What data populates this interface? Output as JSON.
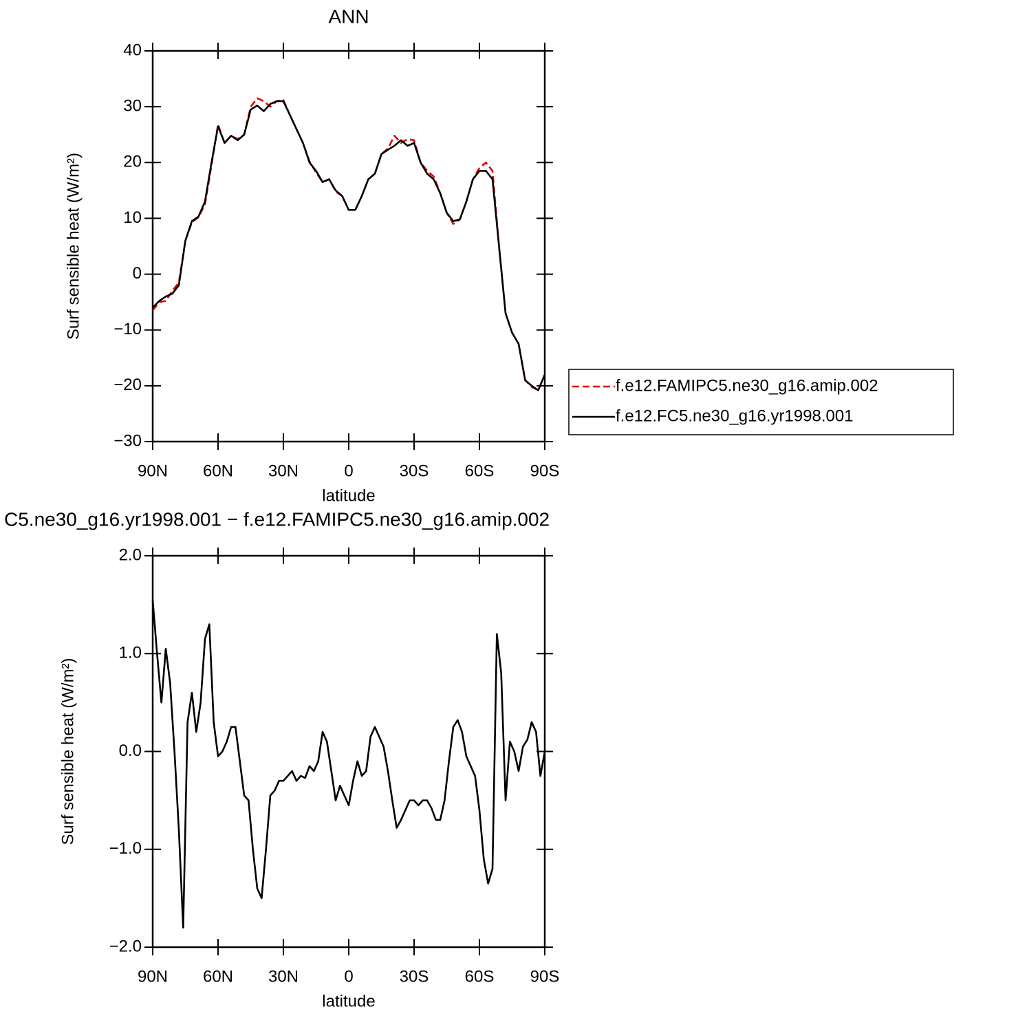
{
  "chart_data": [
    {
      "type": "line",
      "title": "ANN",
      "x_label": "latitude",
      "y_label": "Surf sensible heat (W/m²)",
      "x": [
        90,
        87,
        84,
        81,
        78,
        75,
        72,
        69,
        66,
        63,
        60,
        57,
        54,
        51,
        48,
        45,
        42,
        39,
        36,
        33,
        30,
        27,
        24,
        21,
        18,
        15,
        12,
        9,
        6,
        3,
        0,
        -3,
        -6,
        -9,
        -12,
        -15,
        -18,
        -21,
        -24,
        -27,
        -30,
        -33,
        -36,
        -39,
        -42,
        -45,
        -48,
        -51,
        -54,
        -57,
        -60,
        -63,
        -66,
        -69,
        -72,
        -75,
        -78,
        -81,
        -84,
        -87,
        -90
      ],
      "series": [
        {
          "name": "f.e12.FAMIPC5.ne30_g16.amip.002",
          "color": "#e00000",
          "dash": true,
          "values": [
            -6.5,
            -5,
            -4.8,
            -3,
            -1.5,
            6,
            9.3,
            10.2,
            12.5,
            19.5,
            26.8,
            23.5,
            24.8,
            24.2,
            25,
            30,
            31.5,
            31,
            30,
            31,
            31.2,
            28.5,
            26,
            23.5,
            20.2,
            18.2,
            16.5,
            17,
            14.8,
            14,
            11.5,
            11.5,
            14,
            17,
            18,
            21.5,
            22.5,
            24.8,
            23.5,
            24.2,
            24,
            20,
            18.5,
            17.5,
            14.5,
            11,
            9,
            9.8,
            13,
            17,
            19,
            20,
            18.5,
            5,
            -7,
            -10.5,
            -12.5,
            -19,
            -20.2,
            -20.8,
            -18
          ]
        },
        {
          "name": "f.e12.FC5.ne30_g16.yr1998.001",
          "color": "#000000",
          "dash": false,
          "values": [
            -6,
            -4.8,
            -4,
            -3.5,
            -2,
            6,
            9.5,
            10.3,
            13,
            20,
            26.5,
            23.5,
            24.8,
            24,
            25,
            29.5,
            30.2,
            29.2,
            30.5,
            31,
            31,
            28.5,
            26,
            23.5,
            20,
            18.5,
            16.5,
            17,
            15,
            14,
            11.5,
            11.5,
            14,
            17,
            18,
            21.5,
            22.3,
            23,
            24,
            23,
            23.5,
            20,
            18,
            17,
            14.5,
            11,
            9.5,
            9.8,
            13,
            17,
            18.5,
            18.5,
            17,
            5,
            -7,
            -10.5,
            -12.5,
            -19,
            -20,
            -20.8,
            -18
          ]
        }
      ],
      "xlim": [
        90,
        -90
      ],
      "xticks": [
        {
          "value": 90,
          "label": "90N"
        },
        {
          "value": 60,
          "label": "60N"
        },
        {
          "value": 30,
          "label": "30N"
        },
        0,
        {
          "value": -30,
          "label": "30S"
        },
        {
          "value": -60,
          "label": "60S"
        },
        {
          "value": -90,
          "label": "90S"
        }
      ],
      "ylim": [
        -30,
        40
      ],
      "yticks": [
        {
          "value": -30,
          "label": "−30"
        },
        {
          "value": -20,
          "label": "−20"
        },
        {
          "value": -10,
          "label": "−10"
        },
        0,
        10,
        20,
        30,
        40
      ],
      "legend": "right"
    },
    {
      "type": "line",
      "title": "C5.ne30_g16.yr1998.001 − f.e12.FAMIPC5.ne30_g16.amip.002",
      "x_label": "latitude",
      "y_label": "Surf sensible heat (W/m²)",
      "x": [
        90,
        88,
        86,
        84,
        82,
        80,
        78,
        76,
        74,
        72,
        70,
        68,
        66,
        64,
        62,
        60,
        58,
        56,
        54,
        52,
        50,
        48,
        46,
        44,
        42,
        40,
        38,
        36,
        34,
        32,
        30,
        28,
        26,
        24,
        22,
        20,
        18,
        16,
        14,
        12,
        10,
        8,
        6,
        4,
        2,
        0,
        -2,
        -4,
        -6,
        -8,
        -10,
        -12,
        -14,
        -16,
        -18,
        -20,
        -22,
        -24,
        -26,
        -28,
        -30,
        -32,
        -34,
        -36,
        -38,
        -40,
        -42,
        -44,
        -46,
        -48,
        -50,
        -52,
        -54,
        -56,
        -58,
        -60,
        -62,
        -64,
        -66,
        -68,
        -70,
        -72,
        -74,
        -76,
        -78,
        -80,
        -82,
        -84,
        -86,
        -88,
        -90
      ],
      "series": [
        {
          "color": "#000000",
          "dash": false,
          "values": [
            1.55,
            1.0,
            0.5,
            1.05,
            0.7,
            0.0,
            -0.8,
            -1.8,
            0.3,
            0.6,
            0.2,
            0.5,
            1.15,
            1.3,
            0.3,
            -0.05,
            0.0,
            0.1,
            0.25,
            0.25,
            -0.1,
            -0.45,
            -0.5,
            -1.0,
            -1.4,
            -1.5,
            -1.0,
            -0.45,
            -0.4,
            -0.3,
            -0.3,
            -0.25,
            -0.2,
            -0.3,
            -0.25,
            -0.27,
            -0.15,
            -0.2,
            -0.1,
            0.2,
            0.1,
            -0.2,
            -0.5,
            -0.35,
            -0.45,
            -0.55,
            -0.3,
            -0.1,
            -0.25,
            -0.2,
            0.15,
            0.25,
            0.15,
            0.05,
            -0.2,
            -0.5,
            -0.78,
            -0.7,
            -0.6,
            -0.5,
            -0.5,
            -0.55,
            -0.5,
            -0.5,
            -0.58,
            -0.7,
            -0.7,
            -0.5,
            -0.1,
            0.25,
            0.32,
            0.2,
            -0.05,
            -0.15,
            -0.25,
            -0.6,
            -1.1,
            -1.35,
            -1.2,
            1.2,
            0.8,
            -0.5,
            0.1,
            0.0,
            -0.2,
            0.05,
            0.12,
            0.3,
            0.2,
            -0.25,
            0.0
          ]
        }
      ],
      "xlim": [
        90,
        -90
      ],
      "xticks": [
        {
          "value": 90,
          "label": "90N"
        },
        {
          "value": 60,
          "label": "60N"
        },
        {
          "value": 30,
          "label": "30N"
        },
        0,
        {
          "value": -30,
          "label": "30S"
        },
        {
          "value": -60,
          "label": "60S"
        },
        {
          "value": -90,
          "label": "90S"
        }
      ],
      "ylim": [
        -2,
        2
      ],
      "yticks": [
        {
          "value": -2,
          "label": "−2.0"
        },
        {
          "value": -1,
          "label": "−1.0"
        },
        {
          "value": 0,
          "label": "0.0"
        },
        {
          "value": 1,
          "label": "1.0"
        },
        {
          "value": 2,
          "label": "2.0"
        }
      ]
    }
  ]
}
